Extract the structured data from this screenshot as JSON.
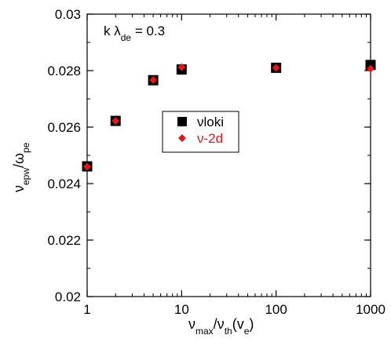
{
  "chart_data": {
    "type": "scatter",
    "x_scale": "log",
    "xlim": [
      1,
      1000
    ],
    "ylim": [
      0.02,
      0.03
    ],
    "x_ticks": [
      1,
      10,
      100,
      1000
    ],
    "x_tick_labels": [
      "1",
      "10",
      "100",
      "1000"
    ],
    "y_ticks": [
      0.02,
      0.022,
      0.024,
      0.026,
      0.028,
      0.03
    ],
    "y_tick_labels": [
      "0.02",
      "0.022",
      "0.024",
      "0.026",
      "0.028",
      "0.03"
    ],
    "xlabel": {
      "parts": [
        "ν",
        "max",
        "/ν",
        "th",
        "(v",
        "e",
        ")"
      ]
    },
    "ylabel": {
      "parts": [
        "ν",
        "epw",
        "/ω",
        "pe"
      ]
    },
    "annotation": {
      "parts": [
        "k λ",
        "de",
        " = 0.3"
      ]
    },
    "legend_position": "center",
    "grid": false,
    "series": [
      {
        "name": "νloki",
        "marker": "square",
        "color": "#000000",
        "x": [
          1,
          2,
          5,
          10,
          100,
          1000
        ],
        "y": [
          0.02461,
          0.02622,
          0.02766,
          0.02804,
          0.0281,
          0.0282
        ]
      },
      {
        "name": "ν-2d",
        "marker": "diamond",
        "color": "#e8141c",
        "x": [
          1,
          2,
          5,
          10,
          100,
          1000
        ],
        "y": [
          0.0246,
          0.02622,
          0.02767,
          0.02812,
          0.0281,
          0.02807
        ]
      }
    ]
  }
}
